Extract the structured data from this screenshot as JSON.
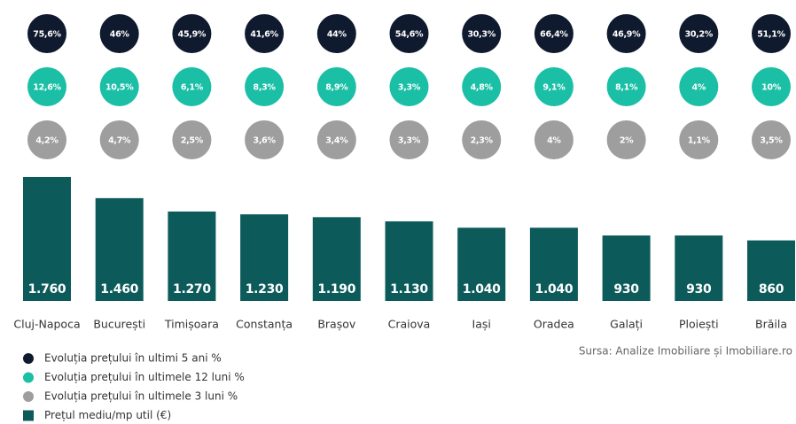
{
  "chart_data": {
    "type": "bar",
    "categories": [
      "Cluj-Napoca",
      "București",
      "Timișoara",
      "Constanța",
      "Brașov",
      "Craiova",
      "Iași",
      "Oradea",
      "Galați",
      "Ploiești",
      "Brăila"
    ],
    "series": [
      {
        "name": "Evoluția prețului în ultimi 5 ani %",
        "type": "circle",
        "color": "#0f1a2e",
        "values": [
          75.6,
          46,
          45.9,
          41.6,
          44,
          54.6,
          30.3,
          66.4,
          46.9,
          30.2,
          51.1
        ],
        "value_labels": [
          "75,6%",
          "46%",
          "45,9%",
          "41,6%",
          "44%",
          "54,6%",
          "30,3%",
          "66,4%",
          "46,9%",
          "30,2%",
          "51,1%"
        ]
      },
      {
        "name": "Evoluția prețului în ultimele 12 luni %",
        "type": "circle",
        "color": "#1bbfa6",
        "values": [
          12.6,
          10.5,
          6.1,
          8.3,
          8.9,
          3.3,
          4.8,
          9.1,
          8.1,
          4,
          10
        ],
        "value_labels": [
          "12,6%",
          "10,5%",
          "6,1%",
          "8,3%",
          "8,9%",
          "3,3%",
          "4,8%",
          "9,1%",
          "8,1%",
          "4%",
          "10%"
        ]
      },
      {
        "name": "Evoluția prețului în ultimele 3 luni %",
        "type": "circle",
        "color": "#9e9e9e",
        "values": [
          4.2,
          4.7,
          2.5,
          3.6,
          3.4,
          3.3,
          2.3,
          4,
          2,
          1.1,
          3.5
        ],
        "value_labels": [
          "4,2%",
          "4,7%",
          "2,5%",
          "3,6%",
          "3,4%",
          "3,3%",
          "2,3%",
          "4%",
          "2%",
          "1,1%",
          "3,5%"
        ]
      },
      {
        "name": "Prețul mediu/mp util (€)",
        "type": "bar",
        "color": "#0c5a5a",
        "values": [
          1760,
          1460,
          1270,
          1230,
          1190,
          1130,
          1040,
          1040,
          930,
          930,
          860
        ],
        "value_labels": [
          "1.760",
          "1.460",
          "1.270",
          "1.230",
          "1.190",
          "1.130",
          "1.040",
          "1.040",
          "930",
          "930",
          "860"
        ]
      }
    ],
    "ylim": [
      0,
      1800
    ],
    "source": "Sursa: Analize Imobiliare și Imobiliare.ro"
  }
}
